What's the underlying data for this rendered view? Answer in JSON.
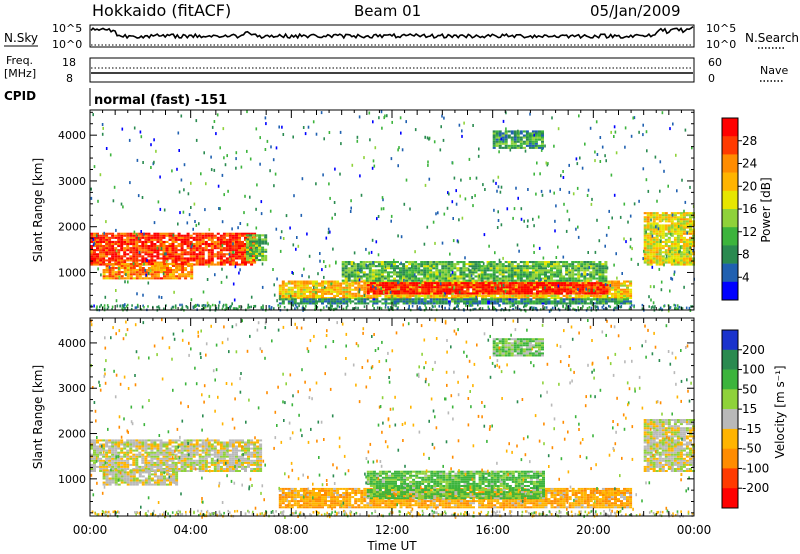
{
  "header": {
    "station": "Hokkaido (fitACF)",
    "beam": "Beam 01",
    "date": "05/Jan/2009"
  },
  "noise_panel": {
    "left_label": "N.Sky",
    "right_label": "N.Search",
    "ticks_left": [
      "10^5",
      "10^0"
    ],
    "ticks_right": [
      "10^5",
      "10^0"
    ]
  },
  "freq_panel": {
    "left_label_1": "Freq.",
    "left_label_2": "[MHz]",
    "left_ticks": [
      "18",
      "8"
    ],
    "right_ticks": [
      "60",
      "0"
    ],
    "right_label": "Nave"
  },
  "cpid_panel": {
    "label": "CPID",
    "mode_text": "normal (fast) -151"
  },
  "power_colorbar": {
    "label": "Power [dB]",
    "ticks": [
      "28",
      "24",
      "20",
      "16",
      "12",
      "8",
      "4"
    ],
    "colors": [
      "#ff0000",
      "#ff3a00",
      "#ff8c00",
      "#ffb400",
      "#e6e600",
      "#8fd23a",
      "#3cb43c",
      "#2a8a50",
      "#2060b0",
      "#0000ff"
    ]
  },
  "velocity_colorbar": {
    "label": "Velocity [m s⁻¹]",
    "ticks": [
      "200",
      "100",
      "50",
      "15",
      "-15",
      "-50",
      "-100",
      "-200"
    ],
    "colors": [
      "#1a33cc",
      "#2a8a50",
      "#3cb43c",
      "#8fd23a",
      "#b9b9b9",
      "#ffb400",
      "#ff8c00",
      "#ff3a00",
      "#ff0000"
    ]
  },
  "x_axis": {
    "label": "Time UT",
    "ticks": [
      "00:00",
      "04:00",
      "08:00",
      "12:00",
      "16:00",
      "20:00",
      "00:00"
    ]
  },
  "chart_data": [
    {
      "type": "heatmap",
      "title": "Power",
      "xlabel": "Time UT",
      "ylabel": "Slant Range [km]",
      "x_ticks": [
        "00:00",
        "04:00",
        "08:00",
        "12:00",
        "16:00",
        "20:00",
        "00:00"
      ],
      "y_ticks": [
        1000,
        2000,
        3000,
        4000
      ],
      "xlim_hours": [
        0,
        24
      ],
      "ylim_km": [
        180,
        4550
      ],
      "colorbar": {
        "label": "Power [dB]",
        "range": [
          0,
          32
        ]
      },
      "regions": [
        {
          "t0": 0.0,
          "t1": 6.5,
          "r0": 1150,
          "r1": 1850,
          "value": 28
        },
        {
          "t0": 0.5,
          "t1": 4.0,
          "r0": 850,
          "r1": 1200,
          "value": 24
        },
        {
          "t0": 6.2,
          "t1": 7.0,
          "r0": 1250,
          "r1": 1800,
          "value": 12
        },
        {
          "t0": 7.5,
          "t1": 21.5,
          "r0": 420,
          "r1": 800,
          "value": 20
        },
        {
          "t0": 11.0,
          "t1": 20.5,
          "r0": 520,
          "r1": 760,
          "value": 30
        },
        {
          "t0": 10.0,
          "t1": 20.5,
          "r0": 800,
          "r1": 1250,
          "value": 12
        },
        {
          "t0": 7.5,
          "t1": 21.5,
          "r0": 300,
          "r1": 420,
          "value": 8
        },
        {
          "t0": 22.0,
          "t1": 24.0,
          "r0": 1150,
          "r1": 2300,
          "value": 18
        },
        {
          "t0": 16.0,
          "t1": 18.0,
          "r0": 3700,
          "r1": 4100,
          "value": 10
        }
      ]
    },
    {
      "type": "heatmap",
      "title": "Velocity",
      "xlabel": "Time UT",
      "ylabel": "Slant Range [km]",
      "x_ticks": [
        "00:00",
        "04:00",
        "08:00",
        "12:00",
        "16:00",
        "20:00",
        "00:00"
      ],
      "y_ticks": [
        1000,
        2000,
        3000,
        4000
      ],
      "xlim_hours": [
        0,
        24
      ],
      "ylim_km": [
        180,
        4550
      ],
      "colorbar": {
        "label": "Velocity [m s-1]",
        "range": [
          -250,
          250
        ]
      },
      "regions": [
        {
          "t0": 0.0,
          "t1": 6.8,
          "r0": 1150,
          "r1": 1850,
          "value": 0
        },
        {
          "t0": 0.5,
          "t1": 3.5,
          "r0": 850,
          "r1": 1200,
          "value": 0
        },
        {
          "t0": 7.5,
          "t1": 21.5,
          "r0": 350,
          "r1": 800,
          "value": -40
        },
        {
          "t0": 11.0,
          "t1": 18.0,
          "r0": 550,
          "r1": 1150,
          "value": 40
        },
        {
          "t0": 22.0,
          "t1": 24.0,
          "r0": 1150,
          "r1": 2300,
          "value": 0
        },
        {
          "t0": 16.0,
          "t1": 18.0,
          "r0": 3700,
          "r1": 4100,
          "value": 30
        }
      ]
    }
  ]
}
